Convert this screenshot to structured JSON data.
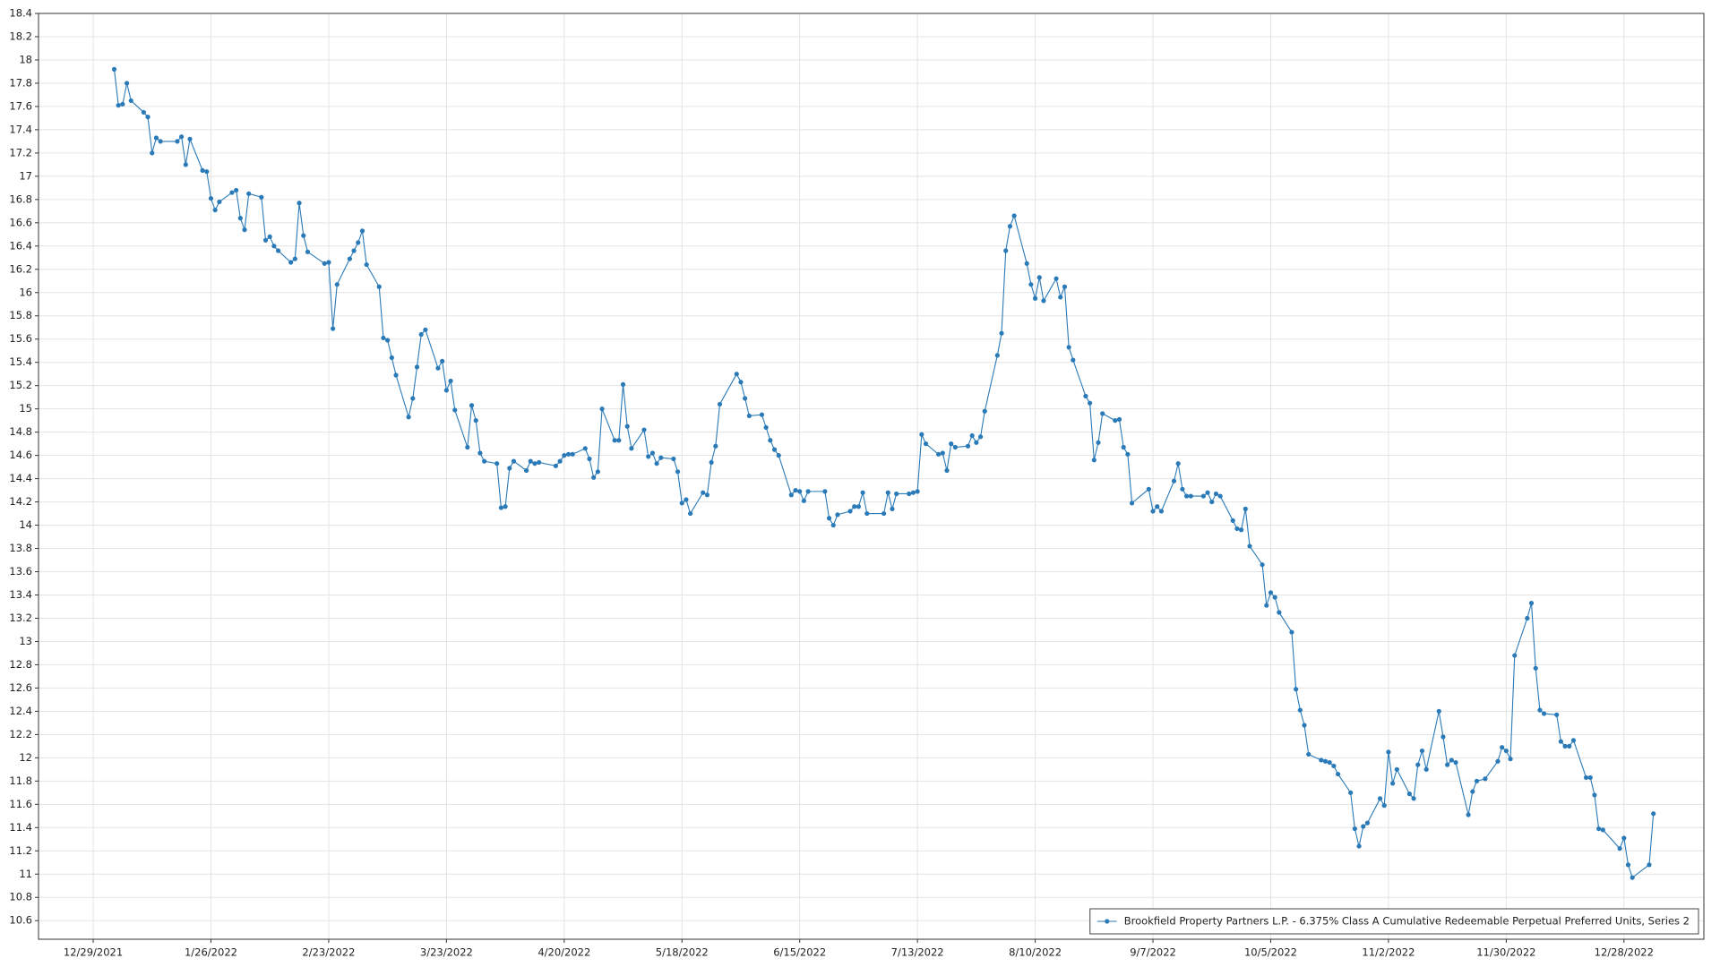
{
  "chart_data": {
    "type": "line",
    "x": [
      "1/3/2022",
      "1/4/2022",
      "1/5/2022",
      "1/6/2022",
      "1/7/2022",
      "1/10/2022",
      "1/11/2022",
      "1/12/2022",
      "1/13/2022",
      "1/14/2022",
      "1/18/2022",
      "1/19/2022",
      "1/20/2022",
      "1/21/2022",
      "1/24/2022",
      "1/25/2022",
      "1/26/2022",
      "1/27/2022",
      "1/28/2022",
      "1/31/2022",
      "2/1/2022",
      "2/2/2022",
      "2/3/2022",
      "2/4/2022",
      "2/7/2022",
      "2/8/2022",
      "2/9/2022",
      "2/10/2022",
      "2/11/2022",
      "2/14/2022",
      "2/15/2022",
      "2/16/2022",
      "2/17/2022",
      "2/18/2022",
      "2/22/2022",
      "2/23/2022",
      "2/24/2022",
      "2/25/2022",
      "2/28/2022",
      "3/1/2022",
      "3/2/2022",
      "3/3/2022",
      "3/4/2022",
      "3/7/2022",
      "3/8/2022",
      "3/9/2022",
      "3/10/2022",
      "3/11/2022",
      "3/14/2022",
      "3/15/2022",
      "3/16/2022",
      "3/17/2022",
      "3/18/2022",
      "3/21/2022",
      "3/22/2022",
      "3/23/2022",
      "3/24/2022",
      "3/25/2022",
      "3/28/2022",
      "3/29/2022",
      "3/30/2022",
      "3/31/2022",
      "4/1/2022",
      "4/4/2022",
      "4/5/2022",
      "4/6/2022",
      "4/7/2022",
      "4/8/2022",
      "4/11/2022",
      "4/12/2022",
      "4/13/2022",
      "4/14/2022",
      "4/18/2022",
      "4/19/2022",
      "4/20/2022",
      "4/21/2022",
      "4/22/2022",
      "4/25/2022",
      "4/26/2022",
      "4/27/2022",
      "4/28/2022",
      "4/29/2022",
      "5/2/2022",
      "5/3/2022",
      "5/4/2022",
      "5/5/2022",
      "5/6/2022",
      "5/9/2022",
      "5/10/2022",
      "5/11/2022",
      "5/12/2022",
      "5/13/2022",
      "5/16/2022",
      "5/17/2022",
      "5/18/2022",
      "5/19/2022",
      "5/20/2022",
      "5/23/2022",
      "5/24/2022",
      "5/25/2022",
      "5/26/2022",
      "5/27/2022",
      "5/31/2022",
      "6/1/2022",
      "6/2/2022",
      "6/3/2022",
      "6/6/2022",
      "6/7/2022",
      "6/8/2022",
      "6/9/2022",
      "6/10/2022",
      "6/13/2022",
      "6/14/2022",
      "6/15/2022",
      "6/16/2022",
      "6/17/2022",
      "6/21/2022",
      "6/22/2022",
      "6/23/2022",
      "6/24/2022",
      "6/27/2022",
      "6/28/2022",
      "6/29/2022",
      "6/30/2022",
      "7/1/2022",
      "7/5/2022",
      "7/6/2022",
      "7/7/2022",
      "7/8/2022",
      "7/11/2022",
      "7/12/2022",
      "7/13/2022",
      "7/14/2022",
      "7/15/2022",
      "7/18/2022",
      "7/19/2022",
      "7/20/2022",
      "7/21/2022",
      "7/22/2022",
      "7/25/2022",
      "7/26/2022",
      "7/27/2022",
      "7/28/2022",
      "7/29/2022",
      "8/1/2022",
      "8/2/2022",
      "8/3/2022",
      "8/4/2022",
      "8/5/2022",
      "8/8/2022",
      "8/9/2022",
      "8/10/2022",
      "8/11/2022",
      "8/12/2022",
      "8/15/2022",
      "8/16/2022",
      "8/17/2022",
      "8/18/2022",
      "8/19/2022",
      "8/22/2022",
      "8/23/2022",
      "8/24/2022",
      "8/25/2022",
      "8/26/2022",
      "8/29/2022",
      "8/30/2022",
      "8/31/2022",
      "9/1/2022",
      "9/2/2022",
      "9/6/2022",
      "9/7/2022",
      "9/8/2022",
      "9/9/2022",
      "9/12/2022",
      "9/13/2022",
      "9/14/2022",
      "9/15/2022",
      "9/16/2022",
      "9/19/2022",
      "9/20/2022",
      "9/21/2022",
      "9/22/2022",
      "9/23/2022",
      "9/26/2022",
      "9/27/2022",
      "9/28/2022",
      "9/29/2022",
      "9/30/2022",
      "10/3/2022",
      "10/4/2022",
      "10/5/2022",
      "10/6/2022",
      "10/7/2022",
      "10/10/2022",
      "10/11/2022",
      "10/12/2022",
      "10/13/2022",
      "10/14/2022",
      "10/17/2022",
      "10/18/2022",
      "10/19/2022",
      "10/20/2022",
      "10/21/2022",
      "10/24/2022",
      "10/25/2022",
      "10/26/2022",
      "10/27/2022",
      "10/28/2022",
      "10/31/2022",
      "11/1/2022",
      "11/2/2022",
      "11/3/2022",
      "11/4/2022",
      "11/7/2022",
      "11/8/2022",
      "11/9/2022",
      "11/10/2022",
      "11/11/2022",
      "11/14/2022",
      "11/15/2022",
      "11/16/2022",
      "11/17/2022",
      "11/18/2022",
      "11/21/2022",
      "11/22/2022",
      "11/23/2022",
      "11/25/2022",
      "11/28/2022",
      "11/29/2022",
      "11/30/2022",
      "12/1/2022",
      "12/2/2022",
      "12/5/2022",
      "12/6/2022",
      "12/7/2022",
      "12/8/2022",
      "12/9/2022",
      "12/12/2022",
      "12/13/2022",
      "12/14/2022",
      "12/15/2022",
      "12/16/2022",
      "12/19/2022",
      "12/20/2022",
      "12/21/2022",
      "12/22/2022",
      "12/23/2022",
      "12/27/2022",
      "12/28/2022",
      "12/29/2022",
      "12/30/2022",
      "1/3/2023",
      "1/4/2023"
    ],
    "series": [
      {
        "name": "Brookfield Property Partners L.P. - 6.375% Class A Cumulative Redeemable Perpetual Preferred Units, Series 2",
        "color": "#2a7ab8",
        "values": [
          17.92,
          17.61,
          17.62,
          17.8,
          17.65,
          17.55,
          17.51,
          17.2,
          17.33,
          17.3,
          17.3,
          17.34,
          17.1,
          17.32,
          17.05,
          17.04,
          16.81,
          16.71,
          16.78,
          16.86,
          16.88,
          16.64,
          16.54,
          16.85,
          16.82,
          16.45,
          16.48,
          16.4,
          16.36,
          16.26,
          16.29,
          16.77,
          16.49,
          16.35,
          16.25,
          16.26,
          15.69,
          16.07,
          16.29,
          16.36,
          16.43,
          16.53,
          16.24,
          16.05,
          15.61,
          15.59,
          15.44,
          15.29,
          14.93,
          15.09,
          15.36,
          15.64,
          15.68,
          15.35,
          15.41,
          15.16,
          15.24,
          14.99,
          14.67,
          15.03,
          14.9,
          14.62,
          14.55,
          14.53,
          14.15,
          14.16,
          14.49,
          14.55,
          14.47,
          14.55,
          14.53,
          14.54,
          14.51,
          14.55,
          14.6,
          14.61,
          14.61,
          14.66,
          14.57,
          14.41,
          14.46,
          15.0,
          14.73,
          14.73,
          15.21,
          14.85,
          14.66,
          14.82,
          14.59,
          14.62,
          14.53,
          14.58,
          14.57,
          14.46,
          14.19,
          14.22,
          14.1,
          14.28,
          14.26,
          14.54,
          14.68,
          15.04,
          15.3,
          15.23,
          15.09,
          14.94,
          14.95,
          14.84,
          14.73,
          14.65,
          14.6,
          14.26,
          14.3,
          14.29,
          14.21,
          14.29,
          14.29,
          14.06,
          14.0,
          14.09,
          14.12,
          14.16,
          14.16,
          14.28,
          14.1,
          14.1,
          14.28,
          14.14,
          14.27,
          14.27,
          14.28,
          14.29,
          14.78,
          14.7,
          14.61,
          14.62,
          14.47,
          14.7,
          14.67,
          14.68,
          14.77,
          14.71,
          14.76,
          14.98,
          15.46,
          15.65,
          16.36,
          16.57,
          16.66,
          16.25,
          16.07,
          15.95,
          16.13,
          15.93,
          16.12,
          15.96,
          16.05,
          15.53,
          15.42,
          15.11,
          15.05,
          14.56,
          14.71,
          14.96,
          14.9,
          14.91,
          14.67,
          14.61,
          14.19,
          14.31,
          14.12,
          14.16,
          14.12,
          14.38,
          14.53,
          14.31,
          14.25,
          14.25,
          14.25,
          14.28,
          14.2,
          14.27,
          14.25,
          14.04,
          13.97,
          13.96,
          14.14,
          13.82,
          13.66,
          13.31,
          13.42,
          13.38,
          13.25,
          13.08,
          12.59,
          12.41,
          12.28,
          12.03,
          11.98,
          11.97,
          11.96,
          11.93,
          11.86,
          11.7,
          11.39,
          11.24,
          11.41,
          11.44,
          11.65,
          11.59,
          12.05,
          11.78,
          11.9,
          11.69,
          11.65,
          11.94,
          12.06,
          11.9,
          12.4,
          12.18,
          11.94,
          11.98,
          11.96,
          11.51,
          11.71,
          11.8,
          11.82,
          11.97,
          12.09,
          12.06,
          11.99,
          12.88,
          13.2,
          13.33,
          12.77,
          12.41,
          12.38,
          12.37,
          12.14,
          12.1,
          12.1,
          12.15,
          11.83,
          11.83,
          11.68,
          11.39,
          11.38,
          11.22,
          11.31,
          11.08,
          10.97,
          11.08,
          11.52
        ]
      }
    ],
    "xlim": [
      "12/16/2021",
      "1/16/2023"
    ],
    "xticks": [
      "12/29/2021",
      "1/26/2022",
      "2/23/2022",
      "3/23/2022",
      "4/20/2022",
      "5/18/2022",
      "6/15/2022",
      "7/13/2022",
      "8/10/2022",
      "9/7/2022",
      "10/5/2022",
      "11/2/2022",
      "11/30/2022",
      "12/28/2022"
    ],
    "ylim": [
      10.44,
      18.4
    ],
    "yticks": [
      10.6,
      10.8,
      11,
      11.2,
      11.4,
      11.6,
      11.8,
      12,
      12.2,
      12.4,
      12.6,
      12.8,
      13,
      13.2,
      13.4,
      13.6,
      13.8,
      14,
      14.2,
      14.4,
      14.6,
      14.8,
      15,
      15.2,
      15.4,
      15.6,
      15.8,
      16,
      16.2,
      16.4,
      16.6,
      16.8,
      17,
      17.2,
      17.4,
      17.6,
      17.8,
      18,
      18.2,
      18.4
    ],
    "grid": true,
    "legend": "lower right"
  }
}
